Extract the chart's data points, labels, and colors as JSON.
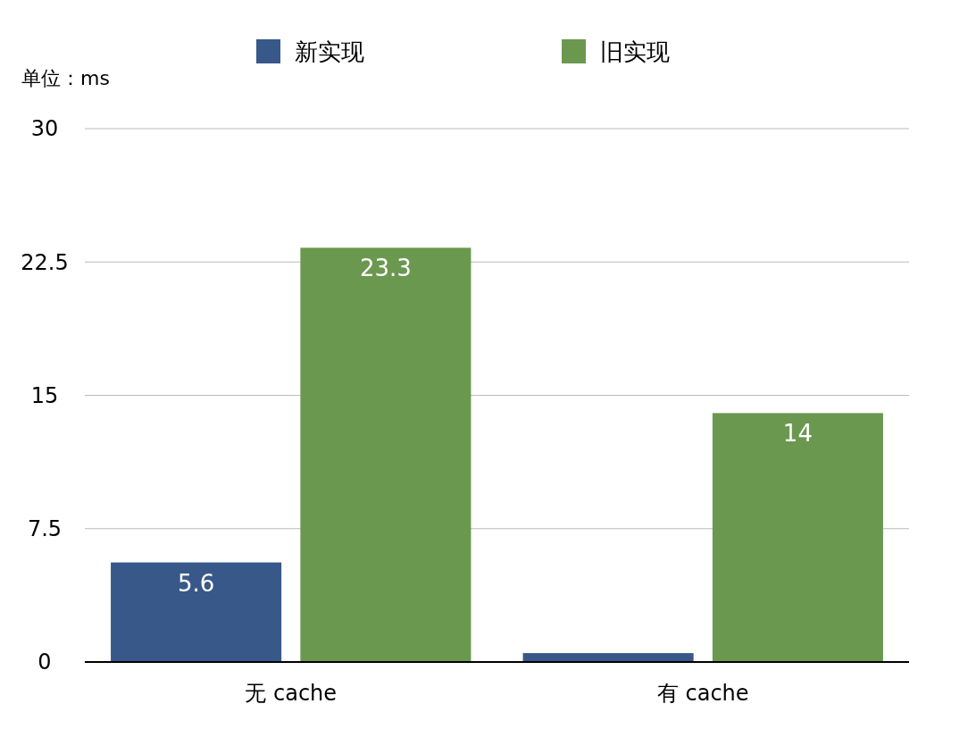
{
  "chart_data": {
    "type": "bar",
    "ylabel": "单位：ms",
    "categories": [
      "无 cache",
      "有 cache"
    ],
    "series": [
      {
        "name": "新实现",
        "color": "#385889",
        "values": [
          5.6,
          0.5
        ],
        "value_labels": [
          "5.6",
          null
        ]
      },
      {
        "name": "旧实现",
        "color": "#6a984f",
        "values": [
          23.3,
          14
        ],
        "value_labels": [
          "23.3",
          "14"
        ]
      }
    ],
    "ylim": [
      0,
      30
    ],
    "yticks": [
      0,
      7.5,
      15,
      22.5,
      30
    ],
    "grid": "y",
    "legend": "top"
  }
}
